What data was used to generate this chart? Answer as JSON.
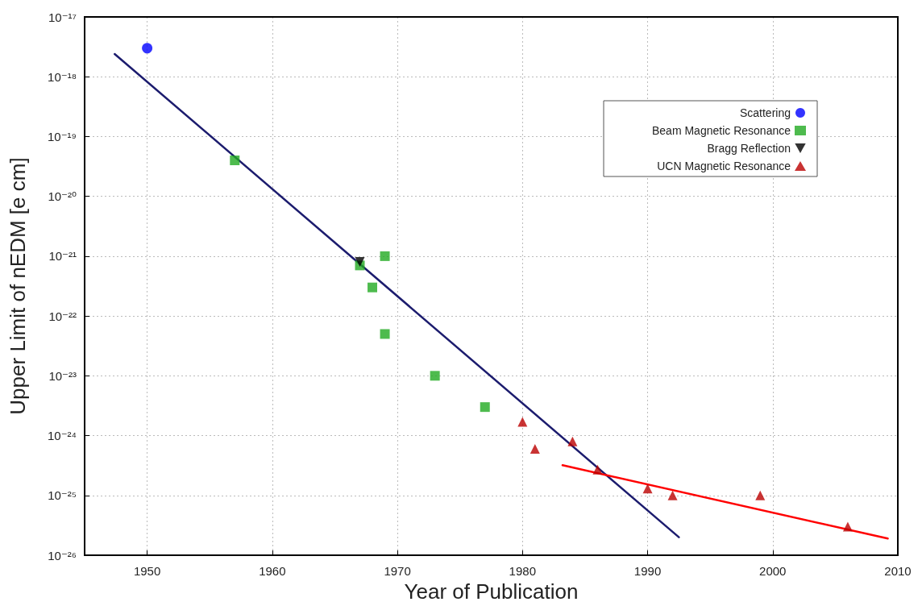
{
  "chart_data": {
    "type": "scatter",
    "xlabel": "Year of Publication",
    "ylabel": "Upper Limit of nEDM [e cm]",
    "log": "y",
    "grid": true,
    "legend": "top right",
    "xlim": [
      1945,
      2010
    ],
    "xticks": [
      1950,
      1960,
      1970,
      1980,
      1990,
      2000,
      2010
    ],
    "ylim": [
      1e-26,
      1e-17
    ],
    "yticks": [
      {
        "value": 1e-26,
        "label": "10⁻²⁶"
      },
      {
        "value": 1e-25,
        "label": "10⁻²⁵"
      },
      {
        "value": 1e-24,
        "label": "10⁻²⁴"
      },
      {
        "value": 1e-23,
        "label": "10⁻²³"
      },
      {
        "value": 1e-22,
        "label": "10⁻²²"
      },
      {
        "value": 1e-21,
        "label": "10⁻²¹"
      },
      {
        "value": 1e-20,
        "label": "10⁻²⁰"
      },
      {
        "value": 1e-19,
        "label": "10⁻¹⁹"
      },
      {
        "value": 1e-18,
        "label": "10⁻¹⁸"
      },
      {
        "value": 1e-17,
        "label": "10⁻¹⁷"
      }
    ],
    "series": [
      {
        "name": "Scattering",
        "color": "#0000ff",
        "marker": "circle",
        "x": [
          1950
        ],
        "values": [
          3e-18
        ]
      },
      {
        "name": "Beam Magnetic Resonance",
        "color": "#22aa22",
        "marker": "square",
        "x": [
          1957,
          1967,
          1968,
          1969,
          1969,
          1973,
          1977
        ],
        "values": [
          4e-20,
          7e-22,
          3e-22,
          1e-21,
          5e-23,
          1e-23,
          3e-24
        ]
      },
      {
        "name": "Bragg Reflection",
        "color": "#000000",
        "marker": "triangle-down",
        "x": [
          1967
        ],
        "values": [
          8e-22
        ]
      },
      {
        "name": "UCN Magnetic Resonance",
        "color": "#bb0000",
        "marker": "triangle",
        "x": [
          1980,
          1981,
          1984,
          1986,
          1990,
          1992,
          1999,
          2006
        ],
        "values": [
          1.7e-24,
          6e-25,
          8e-25,
          2.7e-25,
          1.3e-25,
          1e-25,
          1e-25,
          3e-26
        ]
      },
      {
        "type": "line",
        "color": "#1c1c6e",
        "marker": "none",
        "line_style": "solid",
        "x": [
          1947.4,
          1992.5
        ],
        "values": [
          2.4e-18,
          2e-26
        ]
      },
      {
        "type": "line",
        "color": "#ff0000",
        "marker": "none",
        "line_style": "solid",
        "x": [
          1983.2,
          2009.2
        ],
        "values": [
          3.2e-25,
          1.9e-26
        ]
      }
    ]
  }
}
